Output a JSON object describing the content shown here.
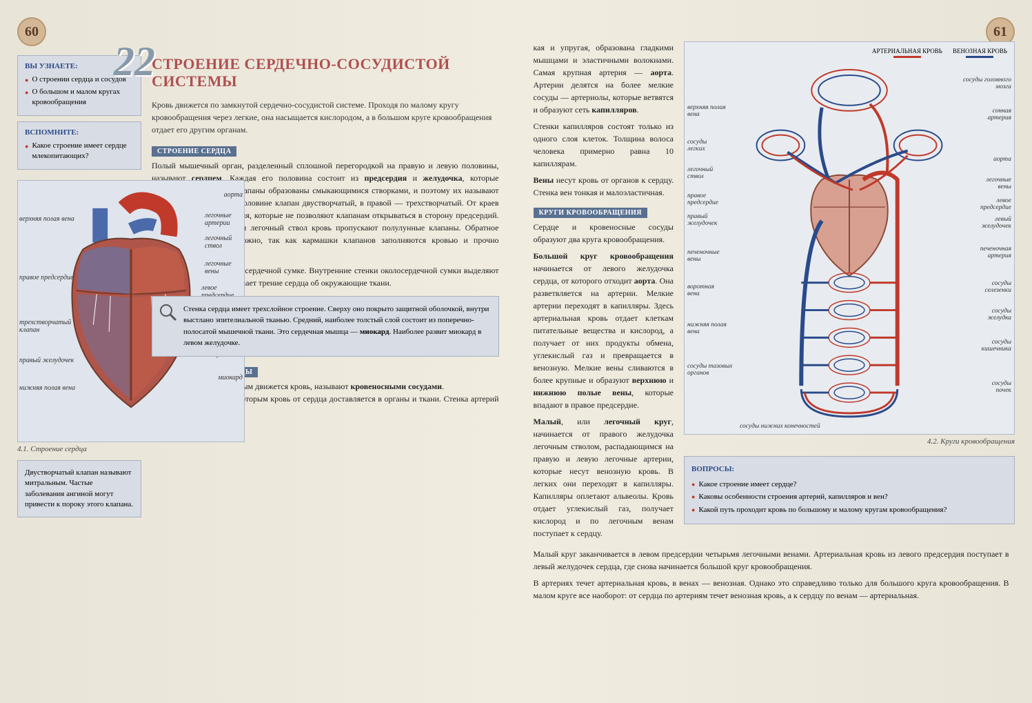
{
  "leftPage": {
    "pageNum": "60",
    "chapterNum": "22",
    "learnBox": {
      "title": "ВЫ УЗНАЕТЕ:",
      "items": [
        "О строении сердца и сосудов",
        "О большом и малом кругах кровообращения"
      ]
    },
    "rememberBox": {
      "title": "ВСПОМНИТЕ:",
      "items": [
        "Какое строение имеет сердце млекопитающих?"
      ]
    },
    "title": "СТРОЕНИЕ СЕРДЕЧНО-СОСУДИСТОЙ СИСТЕМЫ",
    "intro": "Кровь движется по замкнутой сердечно-сосудистой системе. Проходя по малому кругу кровообращения через легкие, она насыщается кислородом, а в большом круге кровообращения отдает его другим органам.",
    "section1": "СТРОЕНИЕ СЕРДЦА",
    "body1": "Полый мышечный орган, разделенный сплошной перегородкой на правую и левую половины, называют <b>сердцем</b>. Каждая его половина состоит из <b>предсердия</b> и <b>желудочка</b>, которые разделены клапанами. Клапаны образованы смыкающимися створками, и поэтому их называют <b>створчатыми</b>. В левой половине клапан двустворчатый, в правой — трехстворчатый. От краев створок отходят сухожилия, которые не позволяют клапанам открываться в сторону предсердий. Из желудочков в аорту и легочный ствол кровь пропускают полулунные клапаны. Обратное движение крови невозможно, так как кармашки клапанов заполняются кровью и прочно смыкаются.",
    "body1b": "Сердце находится в околосердечной сумке. Внутренние стенки околосердечной сумки выделяют жидкость, которая уменьшает трение сердца об окружающие ткани.",
    "heartDiagram": {
      "caption": "4.1. Строение сердца",
      "labels": {
        "aorta": "аорта",
        "pulm_arteries": "легочные артерии",
        "pulm_trunk": "легочный ствол",
        "pulm_veins": "легочные вены",
        "left_atrium": "левое предсердие",
        "bicuspid": "двустворчатый клапан",
        "left_vent": "левый желудочек",
        "myocard": "миокард",
        "sup_vena": "верхняя полая вена",
        "right_atrium": "правое предсердие",
        "tricuspid": "трехстворчатый клапан",
        "right_vent": "правый желудочек",
        "inf_vena": "нижняя полая вена"
      },
      "colors": {
        "artery": "#c0392b",
        "vein": "#3a5a9a",
        "muscle": "#8a4a3a"
      }
    },
    "noteBox": "Двустворчатый клапан называют митральным. Частые заболевания ангиной могут привести к пороку этого клапана.",
    "magnifyBox": "Стенка сердца имеет трехслойное строение. Сверху оно покрыто защитной оболочкой, внутри выстлано эпителиальной тканью. Средний, наиболее толстый слой состоит из поперечно-полосатой мышечной ткани. Это сердечная мышца — <b>миокард</b>. Наиболее развит миокард в левом желудочке.",
    "section2": "КРОВЕНОСНЫЕ СОСУДЫ",
    "body2": "Систему трубок, по которым движется кровь, называют <b>кровеносными сосудами</b>.<br><b>Артерии</b> — сосуды, по которым кровь от сердца доставляется в органы и ткани. Стенка артерий тон-"
  },
  "rightPage": {
    "pageNum": "61",
    "body3": "кая и упругая, образована гладкими мышцами и эластичными волокнами. Самая крупная артерия — <b>аорта</b>. Артерии делятся на более мелкие сосуды — артериолы, которые ветвятся и образуют сеть <b>капилляров</b>.",
    "body3b": "Стенки капилляров состоят только из одного слоя клеток. Толщина волоса человека примерно равна 10 капиллярам.",
    "body3c": "<b>Вены</b> несут кровь от органов к сердцу. Стенка вен тонкая и малоэластичная.",
    "section3": "КРУГИ КРОВООБРАЩЕНИЯ",
    "body4": "Сердце и кровеносные сосуды образуют два круга кровообращения.",
    "body4b": "<b>Большой круг кровообращения</b> начинается от левого желудочка сердца, от которого отходит <b>аорта</b>. Она разветвляется на артерии. Мелкие артерии переходят в капилляры. Здесь артериальная кровь отдает клеткам питательные вещества и кислород, а получает от них продукты обмена, углекислый газ и превращается в венозную. Мелкие вены сливаются в более крупные и образуют <b>верхнюю</b> и <b>нижнюю полые вены</b>, которые впадают в правое предсердие.",
    "body4c": "<b>Малый</b>, или <b>легочный круг</b>, начинается от правого желудочка легочным стволом, распадающимся на правую и левую легочные артерии, которые несут венозную кровь. В легких они переходят в капилляры. Капилляры оплетают альвеолы. Кровь отдает углекислый газ, получает кислород и по легочным венам поступает к сердцу.",
    "body4d": "Малый круг заканчивается в левом предсердии четырьмя легочными венами. Артериальная кровь из левого предсердия поступает в левый желудочек сердца, где снова начинается большой круг кровообращения.",
    "body4e": "В артериях течет артериальная кровь, в венах — венозная. Однако это справедливо только для большого круга кровообращения. В малом круге все наоборот: от сердца по артериям течет венозная кровь, а к сердцу по венам — артериальная.",
    "circDiagram": {
      "caption": "4.2. Круги кровообращения",
      "legend": {
        "arterial": "АРТЕРИАЛЬНАЯ КРОВЬ",
        "venous": "ВЕНОЗНАЯ КРОВЬ",
        "arterial_color": "#c0392b",
        "venous_color": "#2a4a8a"
      },
      "labels": {
        "sup_vena": "верхняя полая вена",
        "lung_vessels": "сосуды легких",
        "pulm_trunk": "легочный ствол",
        "right_atrium": "правое предсердие",
        "right_vent": "правый желудочек",
        "liver_veins": "печеночные вены",
        "portal_vein": "воротная вена",
        "inf_vena": "нижняя полая вена",
        "pelvic": "сосуды тазовых органов",
        "lower": "сосуды нижних конечностей",
        "brain_vessels": "сосуды головного мозга",
        "carotid": "сонная артерия",
        "aorta": "аорта",
        "pulm_veins": "легочные вены",
        "left_atrium": "левое предсердие",
        "left_vent": "левый желудочек",
        "hepatic_art": "печеночная артерия",
        "spleen": "сосуды селезенки",
        "stomach": "сосуды желудка",
        "intestine": "сосуды кишечника",
        "kidney": "сосуды почек"
      }
    },
    "questionsBox": {
      "title": "ВОПРОСЫ:",
      "items": [
        "Какое строение имеет сердце?",
        "Каковы особенности строения артерий, капилляров и вен?",
        "Какой путь проходит кровь по большому и малому кругам кровообращения?"
      ]
    }
  }
}
